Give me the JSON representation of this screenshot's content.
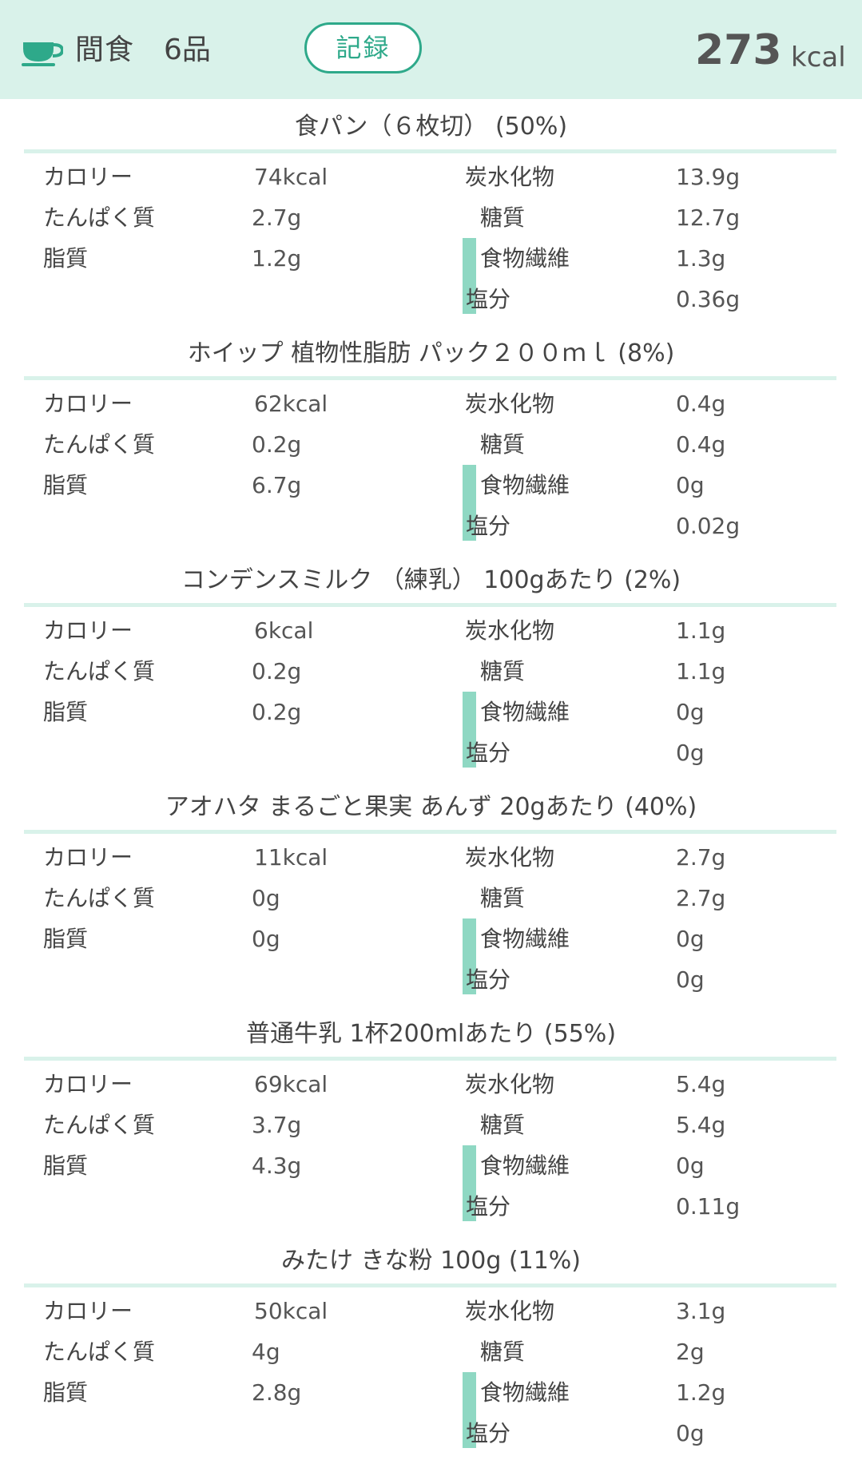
{
  "header": {
    "meal_name": "間食",
    "item_count": "6品",
    "record_label": "記録",
    "total_kcal": "273",
    "kcal_unit": "kcal",
    "icon": "cup-icon"
  },
  "labels": {
    "calorie": "カロリー",
    "protein": "たんぱく質",
    "fat": "脂質",
    "carbs": "炭水化物",
    "sugar": "糖質",
    "fiber": "食物繊維",
    "salt": "塩分"
  },
  "colors": {
    "accent": "#2ea98a",
    "header_bg": "#d9f2ea",
    "bar": "#8fd8c3"
  },
  "foods": [
    {
      "title": "食パン（６枚切） (50%)",
      "calorie": "74kcal",
      "protein": "2.7g",
      "fat": "1.2g",
      "carbs": "13.9g",
      "sugar": "12.7g",
      "fiber": "1.3g",
      "salt": "0.36g"
    },
    {
      "title": "ホイップ 植物性脂肪 パック２００ｍｌ (8%)",
      "calorie": "62kcal",
      "protein": "0.2g",
      "fat": "6.7g",
      "carbs": "0.4g",
      "sugar": "0.4g",
      "fiber": "0g",
      "salt": "0.02g"
    },
    {
      "title": "コンデンスミルク （練乳） 100gあたり (2%)",
      "calorie": "6kcal",
      "protein": "0.2g",
      "fat": "0.2g",
      "carbs": "1.1g",
      "sugar": "1.1g",
      "fiber": "0g",
      "salt": "0g"
    },
    {
      "title": "アオハタ まるごと果実 あんず 20gあたり (40%)",
      "calorie": "11kcal",
      "protein": "0g",
      "fat": "0g",
      "carbs": "2.7g",
      "sugar": "2.7g",
      "fiber": "0g",
      "salt": "0g"
    },
    {
      "title": "普通牛乳 1杯200mlあたり (55%)",
      "calorie": "69kcal",
      "protein": "3.7g",
      "fat": "4.3g",
      "carbs": "5.4g",
      "sugar": "5.4g",
      "fiber": "0g",
      "salt": "0.11g"
    },
    {
      "title": "みたけ きな粉 100g (11%)",
      "calorie": "50kcal",
      "protein": "4g",
      "fat": "2.8g",
      "carbs": "3.1g",
      "sugar": "2g",
      "fiber": "1.2g",
      "salt": "0g"
    }
  ]
}
